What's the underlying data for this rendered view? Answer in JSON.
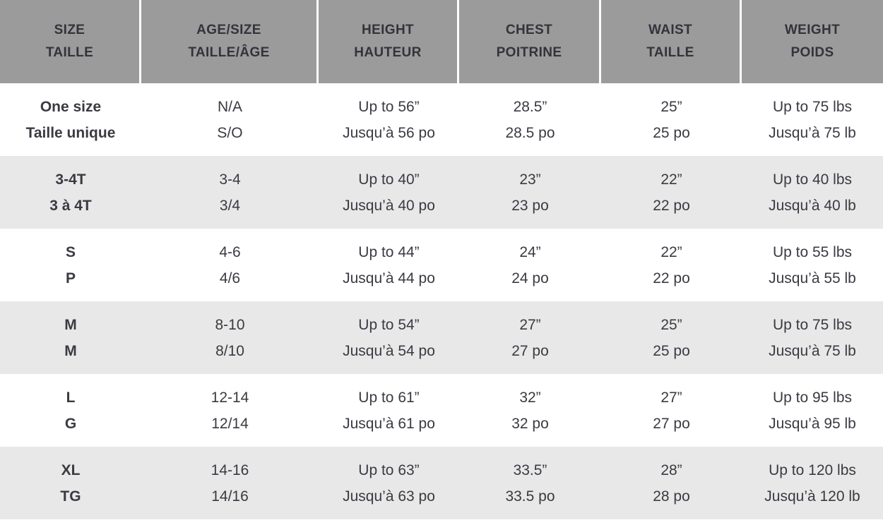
{
  "chart_data": {
    "type": "table",
    "header": [
      {
        "en": "SIZE",
        "fr": "TAILLE"
      },
      {
        "en": "AGE/SIZE",
        "fr": "TAILLE/ÂGE"
      },
      {
        "en": "HEIGHT",
        "fr": "HAUTEUR"
      },
      {
        "en": "CHEST",
        "fr": "POITRINE"
      },
      {
        "en": "WAIST",
        "fr": "TAILLE"
      },
      {
        "en": "WEIGHT",
        "fr": "POIDS"
      }
    ],
    "rows": [
      [
        {
          "en": "One size",
          "fr": "Taille unique"
        },
        {
          "en": "N/A",
          "fr": "S/O"
        },
        {
          "en": "Up to 56”",
          "fr": "Jusqu’à 56 po"
        },
        {
          "en": "28.5”",
          "fr": "28.5 po"
        },
        {
          "en": "25”",
          "fr": "25 po"
        },
        {
          "en": "Up to 75 lbs",
          "fr": "Jusqu’à 75 lb"
        }
      ],
      [
        {
          "en": "3-4T",
          "fr": "3 à 4T"
        },
        {
          "en": "3-4",
          "fr": "3/4"
        },
        {
          "en": "Up to 40”",
          "fr": "Jusqu’à 40 po"
        },
        {
          "en": "23”",
          "fr": "23 po"
        },
        {
          "en": "22”",
          "fr": "22 po"
        },
        {
          "en": "Up to 40 lbs",
          "fr": "Jusqu’à 40 lb"
        }
      ],
      [
        {
          "en": "S",
          "fr": "P"
        },
        {
          "en": "4-6",
          "fr": "4/6"
        },
        {
          "en": "Up to 44”",
          "fr": "Jusqu’à 44 po"
        },
        {
          "en": "24”",
          "fr": "24 po"
        },
        {
          "en": "22”",
          "fr": "22 po"
        },
        {
          "en": "Up to 55 lbs",
          "fr": "Jusqu’à 55 lb"
        }
      ],
      [
        {
          "en": "M",
          "fr": "M"
        },
        {
          "en": "8-10",
          "fr": "8/10"
        },
        {
          "en": "Up to 54”",
          "fr": "Jusqu’à 54 po"
        },
        {
          "en": "27”",
          "fr": "27 po"
        },
        {
          "en": "25”",
          "fr": "25 po"
        },
        {
          "en": "Up to 75 lbs",
          "fr": "Jusqu’à 75 lb"
        }
      ],
      [
        {
          "en": "L",
          "fr": "G"
        },
        {
          "en": "12-14",
          "fr": "12/14"
        },
        {
          "en": "Up to 61”",
          "fr": "Jusqu’à 61 po"
        },
        {
          "en": "32”",
          "fr": "32 po"
        },
        {
          "en": "27”",
          "fr": "27 po"
        },
        {
          "en": "Up to 95 lbs",
          "fr": "Jusqu’à 95 lb"
        }
      ],
      [
        {
          "en": "XL",
          "fr": "TG"
        },
        {
          "en": "14-16",
          "fr": "14/16"
        },
        {
          "en": "Up to 63”",
          "fr": "Jusqu’à 63 po"
        },
        {
          "en": "33.5”",
          "fr": "33.5 po"
        },
        {
          "en": "28”",
          "fr": "28 po"
        },
        {
          "en": "Up to 120 lbs",
          "fr": "Jusqu’à 120 lb"
        }
      ]
    ]
  },
  "colors": {
    "header_bg": "#9b9b9b",
    "header_text": "#33333b",
    "row_alt_bg": "#e8e8e8",
    "body_text": "#3a3a42",
    "divider": "#ffffff",
    "page_bg": "#ffffff"
  }
}
